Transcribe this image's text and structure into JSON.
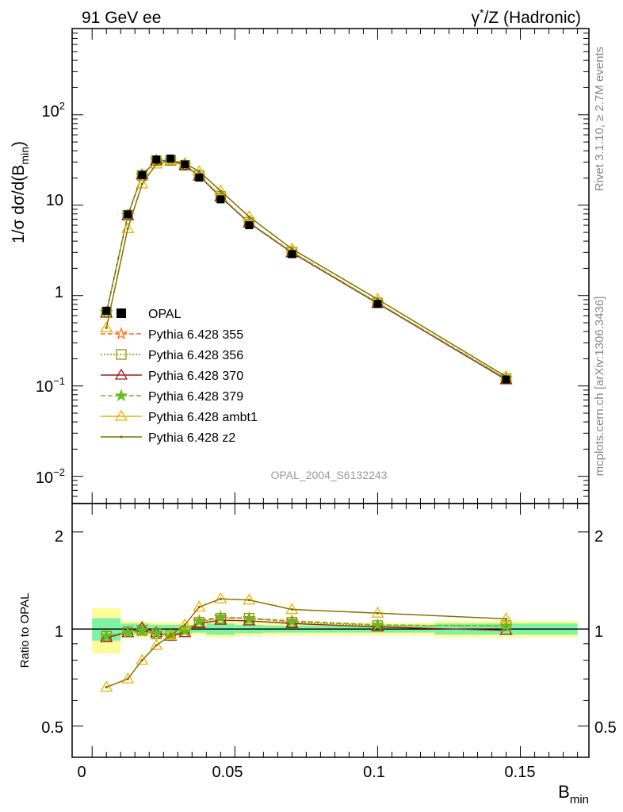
{
  "header": {
    "left": "91 GeV ee",
    "right_pre": "γ",
    "right_sup": "*",
    "right_post": "/Z (Hadronic)"
  },
  "side_text": {
    "top": "Rivet 3.1.10, ≥ 2.7M events",
    "bottom": "mcplots.cern.ch [arXiv:1306.3436]"
  },
  "watermark": "OPAL_2004_S6132243",
  "chart_data": [
    {
      "type": "line",
      "panel": "main",
      "ylabel_main": "1/σ dσ/d(B",
      "ylabel_sub": "min",
      "ylabel_close": ")",
      "yscale": "log",
      "ylim": [
        0.005,
        900
      ],
      "xlim": [
        -0.007,
        0.174
      ],
      "ytick_labels": {
        "t100_base": "10",
        "t100_exp": "2",
        "t10": "10",
        "t1": "1",
        "t01_base": "10",
        "t01_exp": "−1",
        "t001_base": "10",
        "t001_exp": "−2"
      },
      "x": [
        0.005,
        0.0125,
        0.0175,
        0.0225,
        0.0275,
        0.0325,
        0.0375,
        0.045,
        0.055,
        0.07,
        0.1,
        0.145
      ],
      "reference": {
        "name": "OPAL",
        "values": [
          0.68,
          7.9,
          21.5,
          32.0,
          32.8,
          28.2,
          20.2,
          11.6,
          6.0,
          2.87,
          0.81,
          0.118
        ],
        "errors": [
          0.06,
          0.3,
          0.8,
          1.0,
          1.0,
          0.9,
          0.7,
          0.4,
          0.2,
          0.1,
          0.03,
          0.006
        ]
      },
      "legend_position": "middle-left",
      "series": [
        {
          "name": "Pythia 6.428 355",
          "color": "#ff6600",
          "marker": "star",
          "dash": "6,3",
          "values": [
            0.65,
            7.7,
            21.2,
            31.0,
            31.3,
            27.7,
            21.3,
            12.6,
            6.45,
            3.05,
            0.835,
            0.12
          ]
        },
        {
          "name": "Pythia 6.428 356",
          "color": "#8c9a00",
          "marker": "square-open",
          "dash": "2,2",
          "values": [
            0.65,
            7.75,
            21.3,
            31.0,
            31.3,
            27.6,
            21.2,
            12.5,
            6.45,
            3.02,
            0.83,
            0.121
          ]
        },
        {
          "name": "Pythia 6.428 370",
          "color": "#a01c1c",
          "marker": "triangle-open",
          "dash": "",
          "values": [
            0.64,
            7.7,
            21.7,
            31.2,
            31.1,
            27.5,
            21.0,
            12.3,
            6.35,
            2.98,
            0.82,
            0.117
          ]
        },
        {
          "name": "Pythia 6.428 379",
          "color": "#66bb22",
          "marker": "star-filled",
          "dash": "6,3",
          "values": [
            0.65,
            7.7,
            21.3,
            31.1,
            31.3,
            27.7,
            21.3,
            12.6,
            6.45,
            3.04,
            0.835,
            0.12
          ]
        },
        {
          "name": "Pythia 6.428 ambt1",
          "color": "#f0b000",
          "marker": "triangle-open",
          "dash": "",
          "values": [
            0.44,
            5.5,
            17.2,
            28.5,
            31.3,
            29.0,
            23.6,
            14.4,
            7.45,
            3.28,
            0.91,
            0.127
          ]
        },
        {
          "name": "Pythia 6.428 z2",
          "color": "#807000",
          "marker": "dot",
          "dash": "",
          "values": [
            0.44,
            5.5,
            17.2,
            28.5,
            31.3,
            29.0,
            23.6,
            14.4,
            7.45,
            3.28,
            0.91,
            0.127
          ]
        }
      ]
    },
    {
      "type": "line",
      "panel": "ratio",
      "ylabel": "Ratio to OPAL",
      "yscale": "log",
      "ylim": [
        0.4,
        2.45
      ],
      "xlabel_main": "B",
      "xlabel_sub": "min",
      "xtick_labels": [
        "0",
        "0.05",
        "0.1",
        "0.15"
      ],
      "xtick_values": [
        0,
        0.05,
        0.1,
        0.15
      ],
      "ytick_labels": [
        "0.5",
        "1",
        "2"
      ],
      "ytick_values": [
        0.5,
        1,
        2
      ],
      "band_edges": [
        0,
        0.01,
        0.015,
        0.02,
        0.025,
        0.03,
        0.035,
        0.04,
        0.05,
        0.06,
        0.08,
        0.12,
        0.17
      ],
      "band_inner": [
        0.08,
        0.04,
        0.04,
        0.03,
        0.03,
        0.03,
        0.025,
        0.04,
        0.03,
        0.025,
        0.025,
        0.04
      ],
      "band_outer": [
        0.16,
        0.06,
        0.06,
        0.05,
        0.05,
        0.05,
        0.045,
        0.06,
        0.05,
        0.045,
        0.045,
        0.06
      ],
      "band_colors": {
        "inner": "#7ff2a5",
        "outer": "#fdfc9a"
      },
      "x": [
        0.005,
        0.0125,
        0.0175,
        0.0225,
        0.0275,
        0.0325,
        0.0375,
        0.045,
        0.055,
        0.07,
        0.1,
        0.145
      ],
      "series": [
        {
          "name": "Pythia 6.428 355",
          "values": [
            0.95,
            0.975,
            0.985,
            0.965,
            0.955,
            0.985,
            1.06,
            1.09,
            1.08,
            1.06,
            1.03,
            1.02
          ]
        },
        {
          "name": "Pythia 6.428 356",
          "values": [
            0.95,
            0.98,
            0.99,
            0.965,
            0.955,
            0.98,
            1.05,
            1.08,
            1.08,
            1.05,
            1.025,
            1.025
          ]
        },
        {
          "name": "Pythia 6.428 370",
          "values": [
            0.94,
            0.975,
            1.01,
            0.975,
            0.95,
            0.975,
            1.04,
            1.065,
            1.06,
            1.04,
            1.015,
            0.99
          ]
        },
        {
          "name": "Pythia 6.428 379",
          "values": [
            0.95,
            0.975,
            0.99,
            0.97,
            0.955,
            0.985,
            1.055,
            1.085,
            1.075,
            1.055,
            1.03,
            1.02
          ]
        },
        {
          "name": "Pythia 6.428 ambt1",
          "values": [
            0.66,
            0.7,
            0.8,
            0.89,
            0.955,
            1.03,
            1.17,
            1.24,
            1.23,
            1.15,
            1.12,
            1.075
          ]
        },
        {
          "name": "Pythia 6.428 z2",
          "values": [
            0.66,
            0.7,
            0.8,
            0.89,
            0.955,
            1.03,
            1.17,
            1.24,
            1.23,
            1.15,
            1.12,
            1.075
          ]
        }
      ]
    }
  ]
}
